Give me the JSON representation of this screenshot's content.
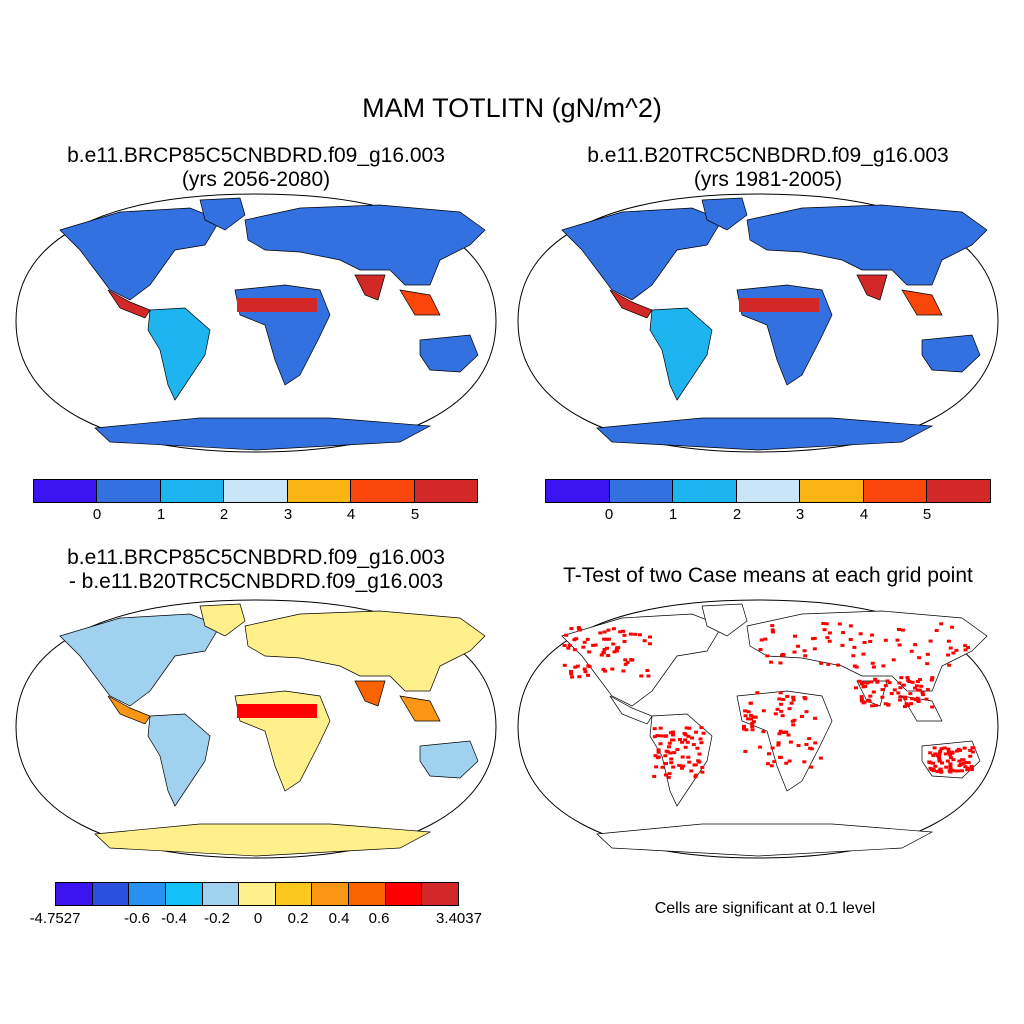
{
  "title": "MAM TOTLITN (gN/m^2)",
  "panels": {
    "top_left": {
      "line1": "b.e11.BRCP85C5CNBDRD.f09_g16.003",
      "line2": "(yrs 2056-2080)"
    },
    "top_right": {
      "line1": "b.e11.B20TRC5CNBDRD.f09_g16.003",
      "line2": "(yrs 1981-2005)"
    },
    "bottom_left": {
      "line1": "b.e11.BRCP85C5CNBDRD.f09_g16.003",
      "line2": "- b.e11.B20TRC5CNBDRD.f09_g16.003"
    },
    "bottom_right": {
      "line1": "T-Test of two Case means at each grid point",
      "note": "Cells are significant at 0.1 level"
    }
  },
  "colorbar_top": {
    "colors": [
      "#3a14f0",
      "#3370e0",
      "#1eb4f0",
      "#c8e6f8",
      "#fab414",
      "#fa460a",
      "#d22828"
    ],
    "labels": [
      "0",
      "1",
      "2",
      "3",
      "4",
      "5"
    ]
  },
  "colorbar_diff": {
    "colors": [
      "#3c14f0",
      "#2a50e0",
      "#2890f0",
      "#14c0f8",
      "#a0d2f0",
      "#fff08c",
      "#fac81e",
      "#fa9614",
      "#fa6400",
      "#ff0000",
      "#d22828"
    ],
    "labels": [
      "-4.7527",
      "-0.6",
      "-0.4",
      "-0.2",
      "0",
      "0.2",
      "0.4",
      "0.6",
      "3.4037"
    ]
  },
  "significance_color": "#ff0000"
}
